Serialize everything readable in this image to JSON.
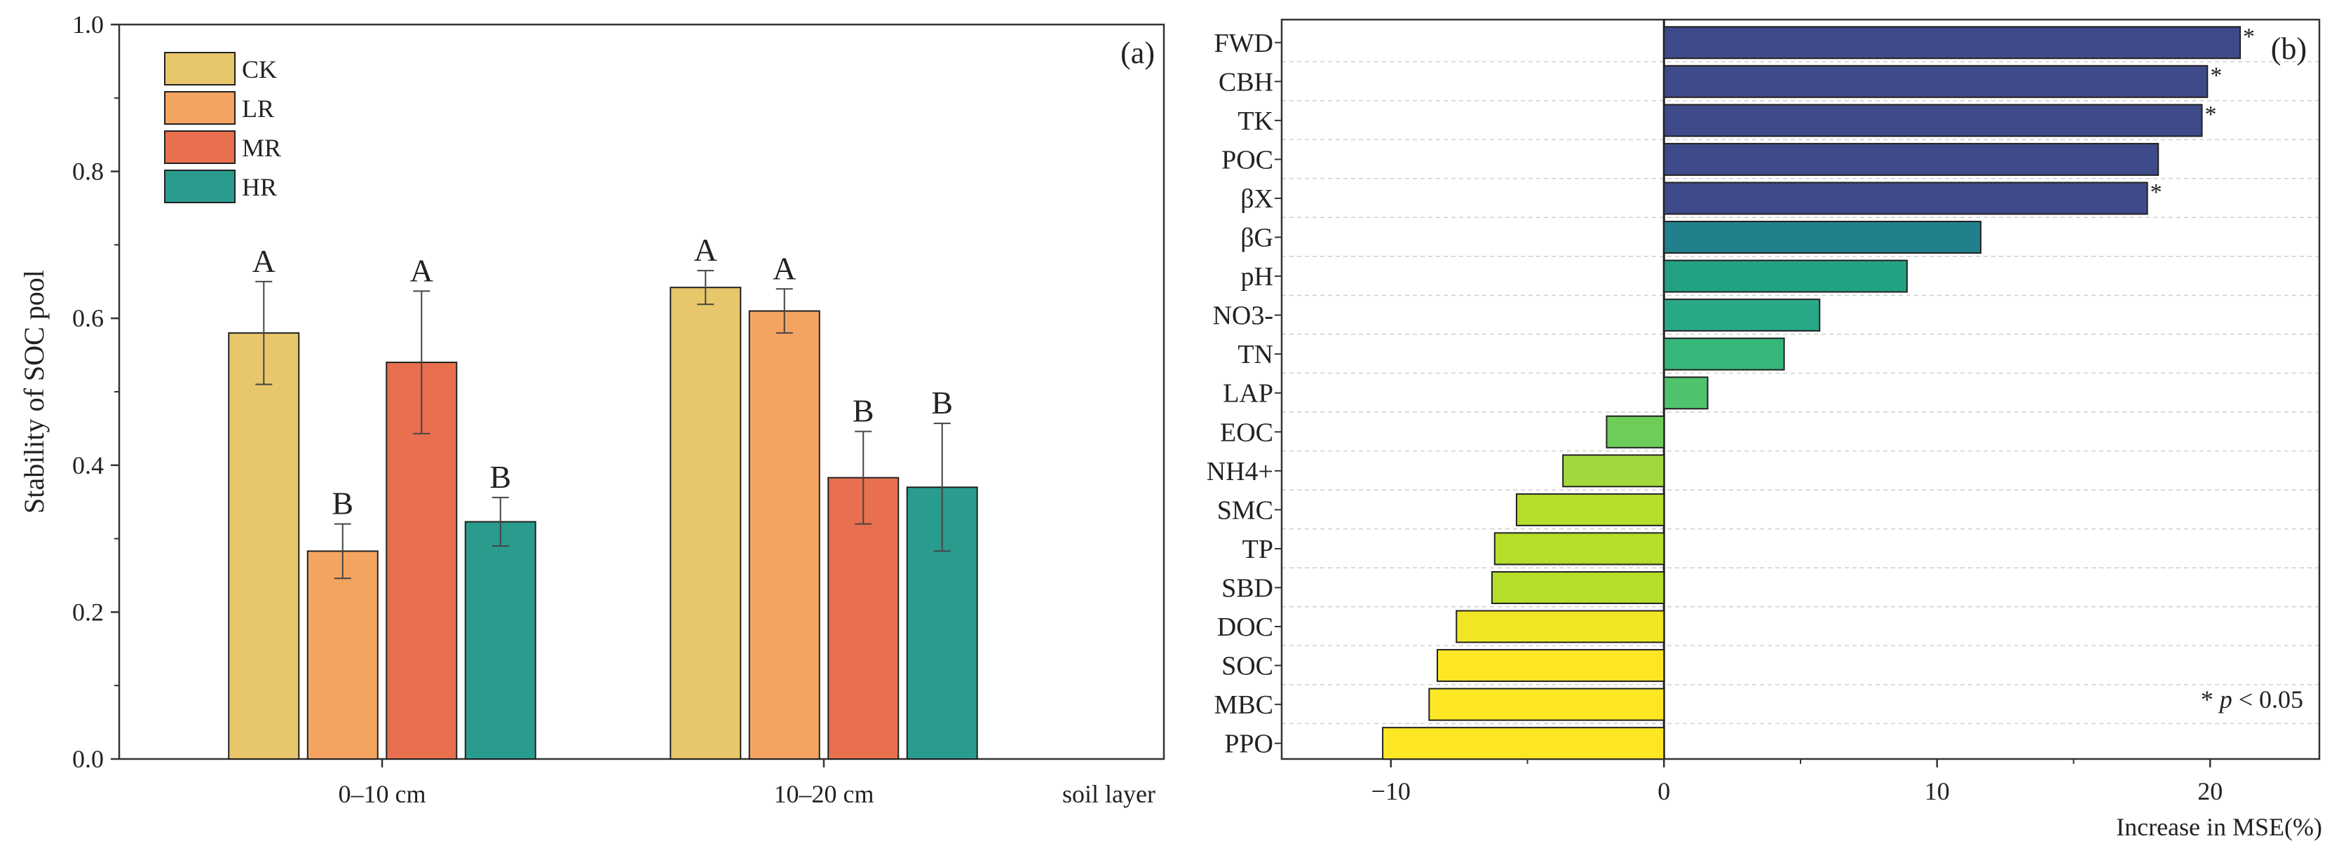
{
  "chart_data": [
    {
      "type": "bar",
      "panel_label": "(a)",
      "ylabel": "Stability of SOC pool",
      "xlabel": "soil layer",
      "categories": [
        "0–10 cm",
        "10–20 cm"
      ],
      "ylim": [
        0,
        1.0
      ],
      "yticks": [
        "0.0",
        "0.2",
        "0.4",
        "0.6",
        "0.8",
        "1.0"
      ],
      "legend_position": "top-left",
      "series": [
        {
          "name": "CK",
          "color": "#E8C66B",
          "values": [
            0.58,
            0.642
          ],
          "errors": [
            0.07,
            0.023
          ],
          "letters": [
            "A",
            "A"
          ]
        },
        {
          "name": "LR",
          "color": "#F4A461",
          "values": [
            0.283,
            0.61
          ],
          "errors": [
            0.037,
            0.03
          ],
          "letters": [
            "B",
            "A"
          ]
        },
        {
          "name": "MR",
          "color": "#E8704F",
          "values": [
            0.54,
            0.383
          ],
          "errors": [
            0.097,
            0.063
          ],
          "letters": [
            "A",
            "B"
          ]
        },
        {
          "name": "HR",
          "color": "#2A9C8E",
          "values": [
            0.323,
            0.37
          ],
          "errors": [
            0.033,
            0.087
          ],
          "letters": [
            "B",
            "B"
          ]
        }
      ]
    },
    {
      "type": "bar",
      "orientation": "horizontal",
      "panel_label": "(b)",
      "xlabel": "Increase in MSE(%)",
      "xlim": [
        -14,
        24
      ],
      "xticks": [
        "−10",
        "0",
        "10",
        "20"
      ],
      "annotation_star": "*",
      "annotation_p": "p",
      "annotation_rest": " < 0.05",
      "grid": "horizontal dashed",
      "categories": [
        "FWD",
        "CBH",
        "TK",
        "POC",
        "βX",
        "βG",
        "pH",
        "NO3-",
        "TN",
        "LAP",
        "EOC",
        "NH4+",
        "SMC",
        "TP",
        "SBD",
        "DOC",
        "SOC",
        "MBC",
        "PPO"
      ],
      "values": [
        21.1,
        19.9,
        19.7,
        18.1,
        17.7,
        11.6,
        8.9,
        5.7,
        4.4,
        1.6,
        -2.1,
        -3.7,
        -5.4,
        -6.2,
        -6.3,
        -7.6,
        -8.3,
        -8.6,
        -10.3
      ],
      "significant": [
        true,
        true,
        true,
        false,
        true,
        false,
        false,
        false,
        false,
        false,
        false,
        false,
        false,
        false,
        false,
        false,
        false,
        false,
        false
      ],
      "colors": [
        "#3F4A8A",
        "#3F4A8A",
        "#3F4A8A",
        "#3F4A8A",
        "#3F4A8A",
        "#22808C",
        "#23A283",
        "#27A987",
        "#35B779",
        "#4EC36B",
        "#6DCD59",
        "#A2D83E",
        "#B5DD2B",
        "#B5DD2B",
        "#B5DD2B",
        "#F0E624",
        "#FDE725",
        "#FDE725",
        "#FDE725"
      ]
    }
  ]
}
